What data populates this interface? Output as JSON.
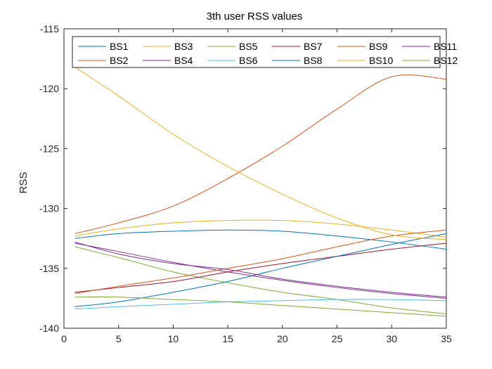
{
  "chart_data": {
    "type": "line",
    "title": "3th user RSS values",
    "xlabel": "",
    "ylabel": "RSS",
    "xlim": [
      0,
      35
    ],
    "ylim": [
      -140,
      -115
    ],
    "xticks": [
      0,
      5,
      10,
      15,
      20,
      25,
      30,
      35
    ],
    "yticks": [
      -140,
      -135,
      -130,
      -125,
      -120,
      -115
    ],
    "x": [
      1,
      5,
      10,
      15,
      20,
      25,
      30,
      35
    ],
    "legend_position": "top",
    "series": [
      {
        "name": "BS1",
        "color": "#0072BD",
        "values": [
          -132.5,
          -132.1,
          -131.9,
          -131.8,
          -131.9,
          -132.3,
          -132.8,
          -133.4
        ]
      },
      {
        "name": "BS2",
        "color": "#D95319",
        "values": [
          -132.1,
          -131.2,
          -129.8,
          -127.5,
          -124.8,
          -121.7,
          -119.0,
          -119.2
        ]
      },
      {
        "name": "BS3",
        "color": "#EDB120",
        "values": [
          -132.3,
          -131.7,
          -131.2,
          -131.0,
          -131.0,
          -131.3,
          -131.8,
          -132.4
        ]
      },
      {
        "name": "BS4",
        "color": "#7E2F8E",
        "values": [
          -132.9,
          -133.6,
          -134.5,
          -135.3,
          -136.0,
          -136.6,
          -137.1,
          -137.5
        ]
      },
      {
        "name": "BS5",
        "color": "#77AC30",
        "values": [
          -133.2,
          -134.1,
          -135.3,
          -136.2,
          -137.0,
          -137.6,
          -138.3,
          -138.8
        ]
      },
      {
        "name": "BS6",
        "color": "#4DBEEE",
        "values": [
          -138.4,
          -138.2,
          -138.0,
          -137.8,
          -137.7,
          -137.6,
          -137.6,
          -137.7
        ]
      },
      {
        "name": "BS7",
        "color": "#A2142F",
        "values": [
          -137.0,
          -136.6,
          -136.1,
          -135.3,
          -134.6,
          -134.0,
          -133.4,
          -132.9
        ]
      },
      {
        "name": "BS8",
        "color": "#0072BD",
        "values": [
          -138.2,
          -137.8,
          -137.0,
          -136.1,
          -135.0,
          -134.0,
          -133.0,
          -132.1
        ]
      },
      {
        "name": "BS9",
        "color": "#D95319",
        "values": [
          -137.1,
          -136.5,
          -135.8,
          -135.0,
          -134.2,
          -133.2,
          -132.3,
          -131.8
        ]
      },
      {
        "name": "BS10",
        "color": "#EDB120",
        "values": [
          -118.2,
          -120.6,
          -123.8,
          -126.5,
          -128.8,
          -130.8,
          -132.2,
          -132.6
        ]
      },
      {
        "name": "BS11",
        "color": "#7E2F8E",
        "values": [
          -132.8,
          -133.8,
          -134.6,
          -135.1,
          -135.9,
          -136.5,
          -137.0,
          -137.4
        ]
      },
      {
        "name": "BS12",
        "color": "#77AC30",
        "values": [
          -137.4,
          -137.4,
          -137.6,
          -137.8,
          -138.1,
          -138.4,
          -138.7,
          -139.0
        ]
      }
    ]
  }
}
